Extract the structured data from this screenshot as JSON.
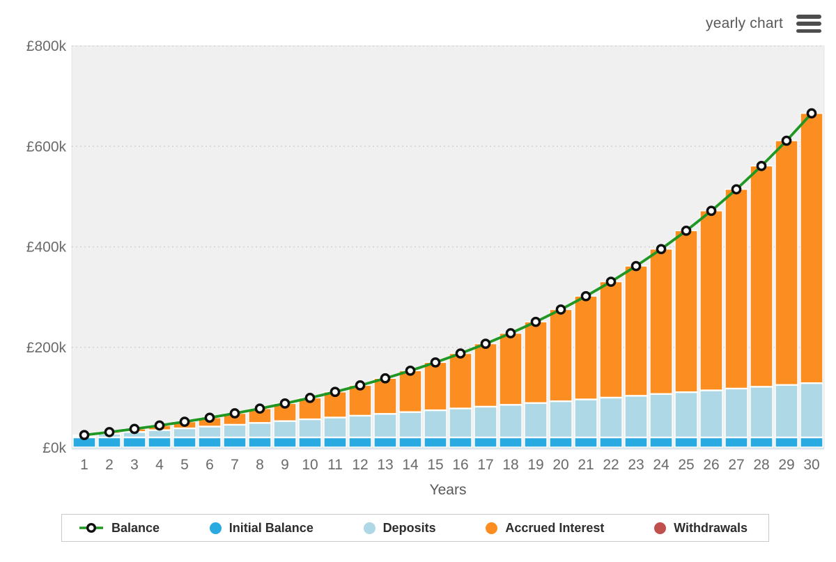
{
  "header": {
    "title": "yearly chart"
  },
  "chart_data": {
    "type": "bar",
    "subtype": "stacked-bars-with-line-overlay",
    "title": "",
    "xlabel": "Years",
    "ylabel": "",
    "x": [
      1,
      2,
      3,
      4,
      5,
      6,
      7,
      8,
      9,
      10,
      11,
      12,
      13,
      14,
      15,
      16,
      17,
      18,
      19,
      20,
      21,
      22,
      23,
      24,
      25,
      26,
      27,
      28,
      29,
      30
    ],
    "ylim": [
      0,
      800000
    ],
    "y_ticks": [
      {
        "value": 0,
        "label": "£0k"
      },
      {
        "value": 200000,
        "label": "£200k"
      },
      {
        "value": 400000,
        "label": "£400k"
      },
      {
        "value": 600000,
        "label": "£600k"
      },
      {
        "value": 800000,
        "label": "£800k"
      }
    ],
    "grid": "dotted-horizontal",
    "legend_position": "bottom",
    "series": [
      {
        "name": "Initial Balance",
        "type": "bar-segment",
        "color": "#29abe2",
        "values": [
          20000,
          20000,
          20000,
          20000,
          20000,
          20000,
          20000,
          20000,
          20000,
          20000,
          20000,
          20000,
          20000,
          20000,
          20000,
          20000,
          20000,
          20000,
          20000,
          20000,
          20000,
          20000,
          20000,
          20000,
          20000,
          20000,
          20000,
          20000,
          20000,
          20000
        ]
      },
      {
        "name": "Deposits",
        "type": "bar-segment",
        "color": "#aed8e6",
        "values": [
          3600,
          7200,
          10800,
          14400,
          18000,
          21600,
          25200,
          28800,
          32400,
          36000,
          39600,
          43200,
          46800,
          50400,
          54000,
          57600,
          61200,
          64800,
          68400,
          72000,
          75600,
          79200,
          82800,
          86400,
          90000,
          93600,
          97200,
          100800,
          104400,
          108000
        ]
      },
      {
        "name": "Accrued Interest",
        "type": "bar-segment",
        "color": "#fb8d21",
        "values": [
          1795,
          4038,
          6766,
          10019,
          13840,
          18278,
          23383,
          29211,
          35820,
          43278,
          51653,
          61022,
          71467,
          83078,
          95952,
          110193,
          125915,
          143240,
          162303,
          183246,
          206226,
          231413,
          258989,
          289152,
          322118,
          358119,
          397406,
          440254,
          486956,
          537834
        ]
      },
      {
        "name": "Withdrawals",
        "type": "bar-segment",
        "color": "#c0504d",
        "values": [
          0,
          0,
          0,
          0,
          0,
          0,
          0,
          0,
          0,
          0,
          0,
          0,
          0,
          0,
          0,
          0,
          0,
          0,
          0,
          0,
          0,
          0,
          0,
          0,
          0,
          0,
          0,
          0,
          0,
          0
        ]
      },
      {
        "name": "Balance",
        "type": "line",
        "color": "#1f9722",
        "marker": {
          "fill": "#ffffff",
          "stroke": "#0f0f0f"
        },
        "values": [
          25395,
          31238,
          37566,
          44419,
          51840,
          59878,
          68583,
          78011,
          88220,
          99278,
          111253,
          124222,
          138267,
          153478,
          169952,
          187793,
          207115,
          228040,
          250703,
          275246,
          301826,
          330613,
          361789,
          395552,
          432118,
          471719,
          514606,
          561054,
          611356,
          665834
        ]
      }
    ],
    "plot_background": "#f0f0f0",
    "gridline_color": "#d2d2d2",
    "axis_text_color": "#6a6a6a"
  },
  "legend": {
    "items": [
      {
        "id": "balance",
        "label": "Balance",
        "swatch": "line-marker",
        "color": "#1f9722"
      },
      {
        "id": "initial-balance",
        "label": "Initial Balance",
        "swatch": "dot",
        "color": "#29abe2"
      },
      {
        "id": "deposits",
        "label": "Deposits",
        "swatch": "dot",
        "color": "#aed8e6"
      },
      {
        "id": "accrued-interest",
        "label": "Accrued Interest",
        "swatch": "dot",
        "color": "#fb8d21"
      },
      {
        "id": "withdrawals",
        "label": "Withdrawals",
        "swatch": "dot",
        "color": "#c0504d"
      }
    ]
  }
}
